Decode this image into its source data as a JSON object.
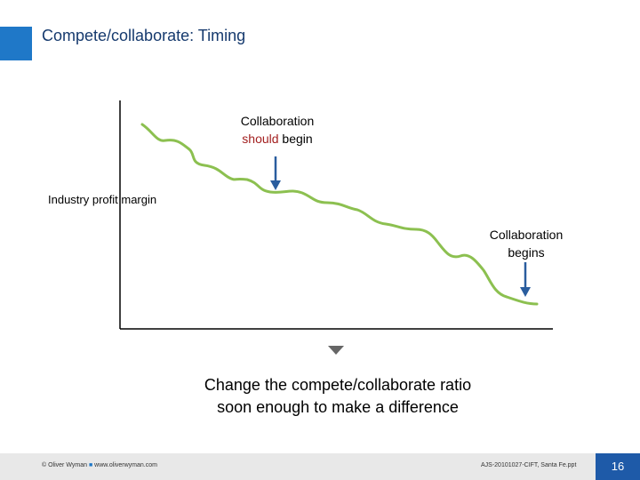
{
  "slide": {
    "title": "Compete/collaborate:  Timing",
    "accent_color": "#1f78c8"
  },
  "diagram": {
    "y_axis_label": "Industry profit margin",
    "curve_color": "#8cc050",
    "arrow_color": "#2a5d9e",
    "annotation_should_begin": {
      "line1": "Collaboration",
      "emphasis": "should",
      "rest": " begin"
    },
    "annotation_begins": {
      "line1": "Collaboration",
      "line2": "begins"
    },
    "tagline_line1": "Change the compete/collaborate ratio",
    "tagline_line2": "soon enough to make a difference"
  },
  "footer": {
    "copyright": "© Oliver Wyman",
    "website": "www.oliverwyman.com",
    "document_ref": "AJS-20101027-CIFT, Santa Fe.ppt",
    "page_number": "16"
  }
}
